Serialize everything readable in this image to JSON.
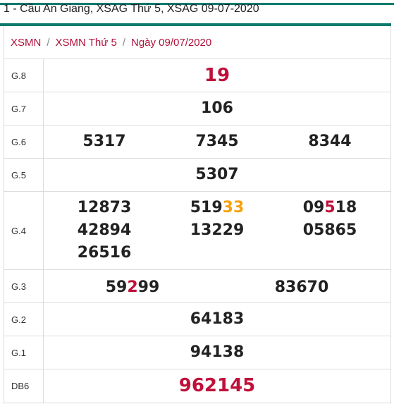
{
  "header": {
    "title": "1 - Cầu An Giang, XSAG Thứ 5, XSAG 09-07-2020"
  },
  "breadcrumb": {
    "items": [
      "XSMN",
      "XSMN Thứ 5",
      "Ngày 09/07/2020"
    ],
    "separator": "/"
  },
  "colors": {
    "accent": "#0d7a6c",
    "link": "#b0103a",
    "special": "#c0103a",
    "highlight_orange": "#f4a20e"
  },
  "prizes": {
    "g8": {
      "label": "G.8",
      "values": [
        "19"
      ]
    },
    "g7": {
      "label": "G.7",
      "values": [
        "106"
      ]
    },
    "g6": {
      "label": "G.6",
      "values": [
        "5317",
        "7345",
        "8344"
      ]
    },
    "g5": {
      "label": "G.5",
      "values": [
        "5307"
      ]
    },
    "g4": {
      "label": "G.4",
      "values": [
        "12873",
        "51933",
        "09518",
        "42894",
        "13229",
        "05865",
        "26516"
      ],
      "v2_head": "519",
      "v2_tail": "33",
      "v3_head": "09",
      "v3_mid": "5",
      "v3_tail": "18"
    },
    "g3": {
      "label": "G.3",
      "values": [
        "59299",
        "83670"
      ],
      "v1_head": "59",
      "v1_mid": "2",
      "v1_tail": "99"
    },
    "g2": {
      "label": "G.2",
      "values": [
        "64183"
      ]
    },
    "g1": {
      "label": "G.1",
      "values": [
        "94138"
      ]
    },
    "db": {
      "label": "DB6",
      "values": [
        "962145"
      ]
    }
  }
}
